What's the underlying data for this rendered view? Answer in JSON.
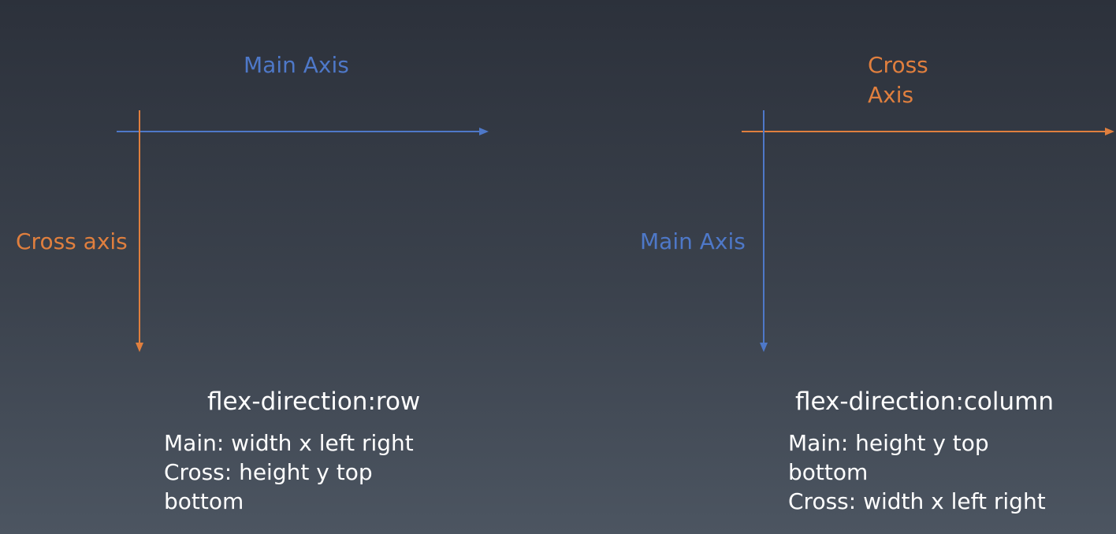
{
  "colors": {
    "main_axis": "#4e78c8",
    "cross_axis": "#e07f3e",
    "text": "#ffffff"
  },
  "row_diagram": {
    "main_axis_label": "Main Axis",
    "cross_axis_label": "Cross axis",
    "title": "flex-direction:row",
    "description": [
      "Main: width x left right",
      "Cross: height y top",
      "bottom"
    ]
  },
  "column_diagram": {
    "cross_axis_label_line1": "Cross",
    "cross_axis_label_line2": "Axis",
    "main_axis_label": "Main Axis",
    "title": "flex-direction:column",
    "description": [
      "Main: height y top",
      "bottom",
      "Cross: width x left right"
    ]
  }
}
